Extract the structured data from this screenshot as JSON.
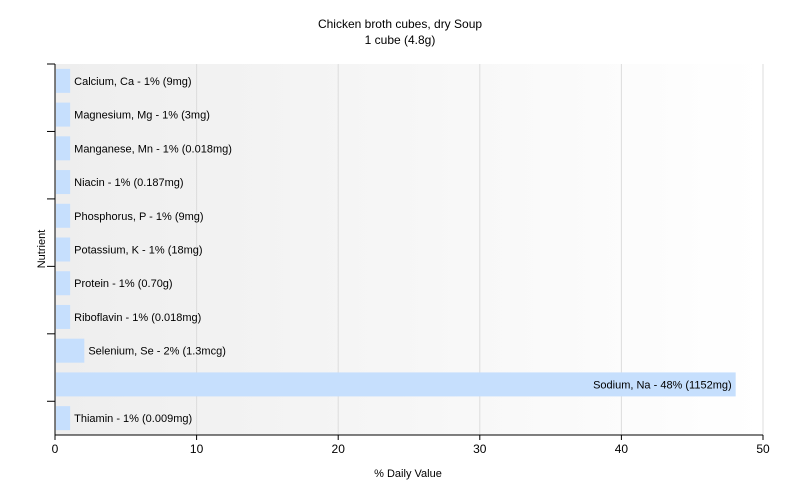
{
  "chart_data": {
    "type": "bar",
    "orientation": "horizontal",
    "title": "Chicken broth cubes, dry Soup",
    "subtitle": "1 cube (4.8g)",
    "xlabel": "% Daily Value",
    "ylabel": "Nutrient",
    "xlim": [
      0,
      50
    ],
    "xticks": [
      0,
      10,
      20,
      30,
      40,
      50
    ],
    "grid": true,
    "bar_color": "#c6dffd",
    "categories": [
      "Calcium, Ca",
      "Magnesium, Mg",
      "Manganese, Mn",
      "Niacin",
      "Phosphorus, P",
      "Potassium, K",
      "Protein",
      "Riboflavin",
      "Selenium, Se",
      "Sodium, Na",
      "Thiamin"
    ],
    "values": [
      1,
      1,
      1,
      1,
      1,
      1,
      1,
      1,
      2,
      48,
      1
    ],
    "labels": [
      "Calcium, Ca - 1% (9mg)",
      "Magnesium, Mg - 1% (3mg)",
      "Manganese, Mn - 1% (0.018mg)",
      "Niacin - 1% (0.187mg)",
      "Phosphorus, P - 1% (9mg)",
      "Potassium, K - 1% (18mg)",
      "Protein - 1% (0.70g)",
      "Riboflavin - 1% (0.018mg)",
      "Selenium, Se - 2% (1.3mcg)",
      "Sodium, Na - 48% (1152mg)",
      "Thiamin - 1% (0.009mg)"
    ]
  }
}
